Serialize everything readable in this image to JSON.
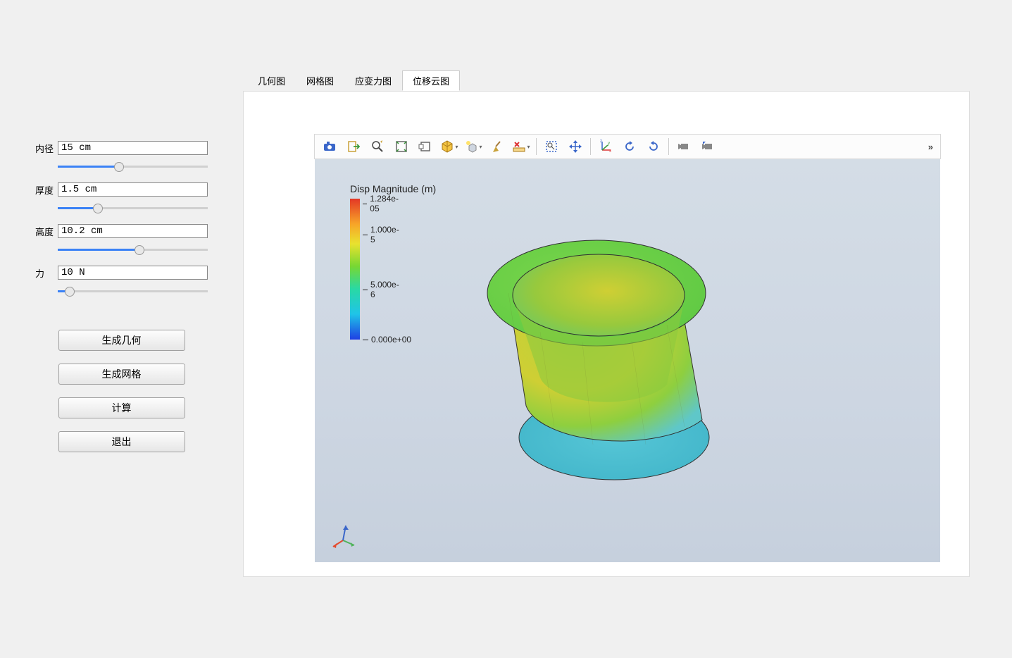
{
  "sidebar": {
    "params": [
      {
        "label": "内径",
        "value": "15 cm",
        "slider_pct": 40
      },
      {
        "label": "厚度",
        "value": "1.5 cm",
        "slider_pct": 25
      },
      {
        "label": "高度",
        "value": "10.2 cm",
        "slider_pct": 55
      },
      {
        "label": "力",
        "value": "10 N",
        "slider_pct": 5
      }
    ],
    "buttons": [
      "生成几何",
      "生成网格",
      "计算",
      "退出"
    ]
  },
  "tabs": {
    "items": [
      "几何图",
      "网格图",
      "应变力图",
      "位移云图"
    ],
    "active_index": 3
  },
  "toolbar": {
    "buttons": [
      {
        "name": "camera-icon"
      },
      {
        "name": "export-icon"
      },
      {
        "name": "zoom-icon"
      },
      {
        "name": "fit-window-icon"
      },
      {
        "name": "box-icon"
      },
      {
        "name": "shade-cube-icon",
        "dropdown": true
      },
      {
        "name": "light-cube-icon",
        "dropdown": true
      },
      {
        "name": "broom-icon"
      },
      {
        "name": "ruler-x-icon",
        "dropdown": true
      },
      {
        "sep": true
      },
      {
        "name": "select-rect-icon"
      },
      {
        "name": "move-arrows-icon"
      },
      {
        "sep": true
      },
      {
        "name": "axes-icon"
      },
      {
        "name": "rotate-ccw-icon"
      },
      {
        "name": "rotate-cw-icon"
      },
      {
        "sep": true
      },
      {
        "name": "camera-left-icon"
      },
      {
        "name": "camera-reset-icon"
      }
    ],
    "overflow_glyph": "»"
  },
  "viewer": {
    "legend": {
      "title": "Disp Magnitude (m)",
      "gradient": [
        "#e33726",
        "#f7a528",
        "#e9e22f",
        "#77d733",
        "#29d9a4",
        "#1fc4e8",
        "#1f3fe3"
      ],
      "ticks": [
        {
          "label": "1.284e-05",
          "pos_pct": 0
        },
        {
          "label": "1.000e-5",
          "pos_pct": 22
        },
        {
          "label": "5.000e-6",
          "pos_pct": 61
        },
        {
          "label": "0.000e+00",
          "pos_pct": 100
        }
      ]
    },
    "triad": {
      "x_color": "#e34b2e",
      "y_color": "#4fb35a",
      "z_color": "#3a66c9"
    },
    "model": {
      "type": "fea_contour_cylinder",
      "faceted": true,
      "colors": {
        "top_rim": "#7ad64a",
        "body_upper": "#b7d13b",
        "body_mid": "#cfcf34",
        "body_lower": "#5fc7c9",
        "base": "#56c6d6",
        "inner": "#97c93d"
      },
      "edge_color": "#303030"
    },
    "background_gradient": [
      "#d4dde6",
      "#c6d0dd"
    ]
  }
}
